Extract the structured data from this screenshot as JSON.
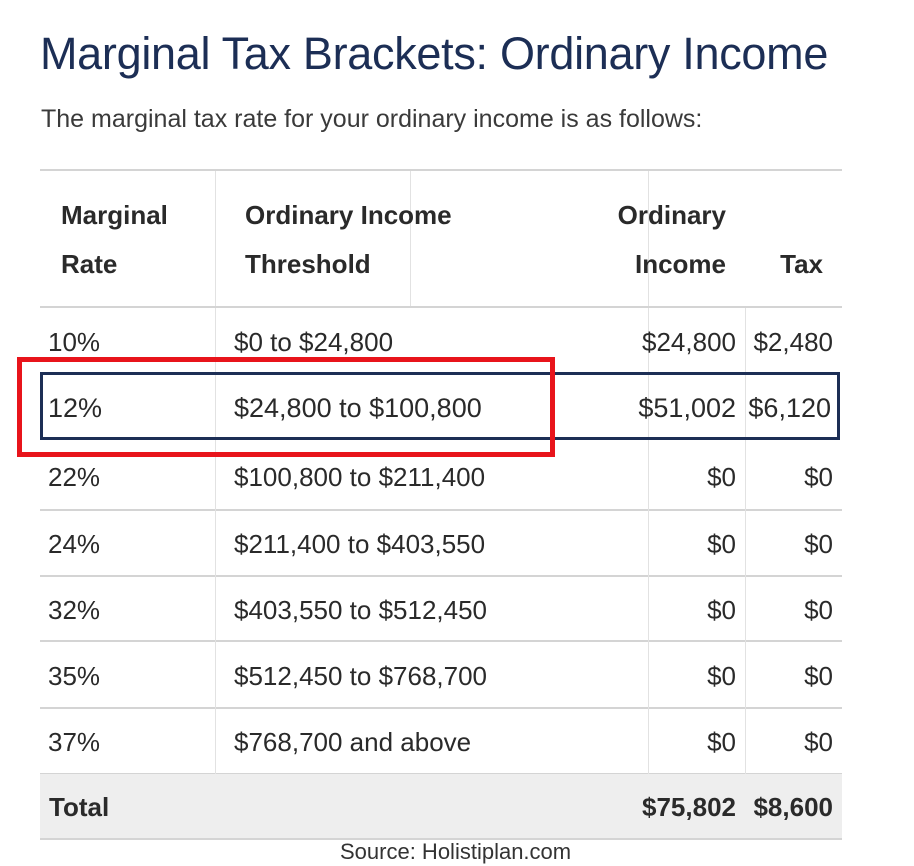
{
  "title": "Marginal Tax Brackets: Ordinary Income",
  "subtitle": "The marginal tax rate for your ordinary income is as follows:",
  "headers": {
    "rate": [
      "Marginal",
      "Rate"
    ],
    "threshold": [
      "Ordinary Income",
      "Threshold"
    ],
    "income": [
      "Ordinary",
      "Income"
    ],
    "tax": "Tax"
  },
  "rows": [
    {
      "rate": "10%",
      "threshold": "$0 to $24,800",
      "income": "$24,800",
      "tax": "$2,480"
    },
    {
      "rate": "12%",
      "threshold": "$24,800 to $100,800",
      "income": "$51,002",
      "tax": "$6,120"
    },
    {
      "rate": "22%",
      "threshold": "$100,800 to $211,400",
      "income": "$0",
      "tax": "$0"
    },
    {
      "rate": "24%",
      "threshold": "$211,400 to $403,550",
      "income": "$0",
      "tax": "$0"
    },
    {
      "rate": "32%",
      "threshold": "$403,550 to $512,450",
      "income": "$0",
      "tax": "$0"
    },
    {
      "rate": "35%",
      "threshold": "$512,450 to $768,700",
      "income": "$0",
      "tax": "$0"
    },
    {
      "rate": "37%",
      "threshold": "$768,700 and above",
      "income": "$0",
      "tax": "$0"
    }
  ],
  "total": {
    "label": "Total",
    "income": "$75,802",
    "tax": "$8,600"
  },
  "highlighted_rate": "12%",
  "colors": {
    "title": "#1c2e55",
    "highlight_border": "#1c2e55",
    "annotation": "#e8141b",
    "total_bg": "#eeeeee"
  },
  "source": "Source: Holistiplan.com"
}
